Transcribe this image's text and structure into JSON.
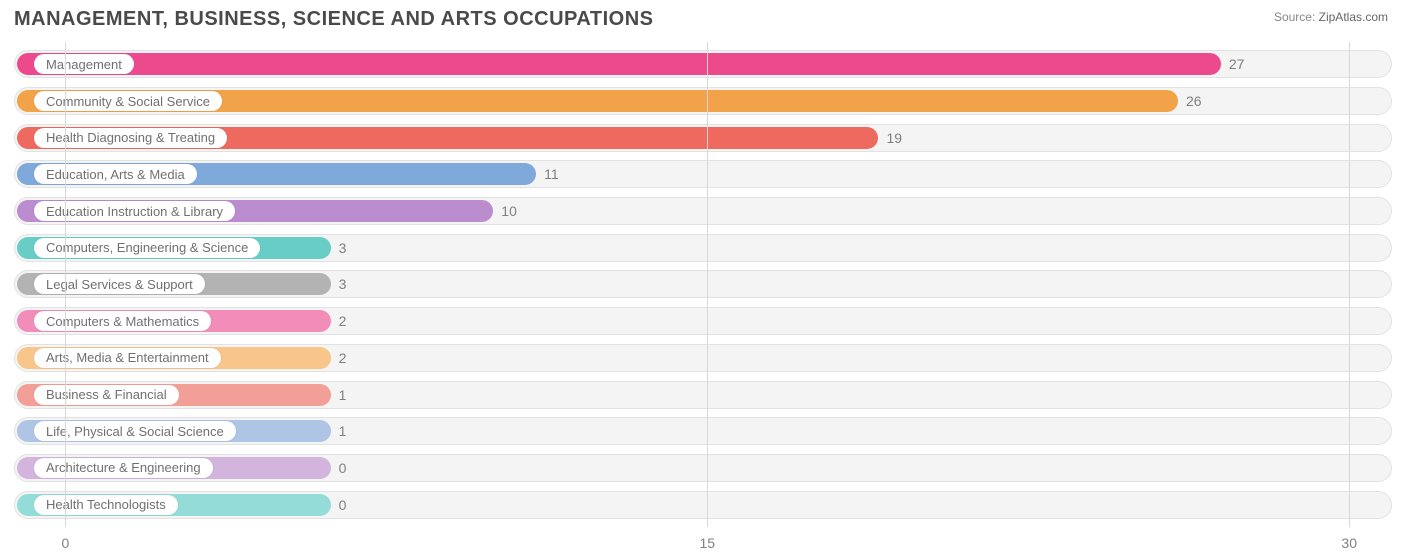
{
  "title": "MANAGEMENT, BUSINESS, SCIENCE AND ARTS OCCUPATIONS",
  "source_label": "Source:",
  "source_value": "ZipAtlas.com",
  "chart": {
    "type": "bar-horizontal",
    "x_min": -1.2,
    "x_max": 31,
    "x_ticks": [
      0,
      15,
      30
    ],
    "track_bg": "#f4f4f4",
    "track_border": "#e2e2e2",
    "grid_color": "#d8d8d8",
    "text_color": "#808080",
    "pill_bg": "#ffffff",
    "min_bar_value": 6.2,
    "bars": [
      {
        "label": "Management",
        "value": 27,
        "color": "#ec4a8d"
      },
      {
        "label": "Community & Social Service",
        "value": 26,
        "color": "#f2a34a"
      },
      {
        "label": "Health Diagnosing & Treating",
        "value": 19,
        "color": "#ee6a5f"
      },
      {
        "label": "Education, Arts & Media",
        "value": 11,
        "color": "#7fa9db"
      },
      {
        "label": "Education Instruction & Library",
        "value": 10,
        "color": "#bb8cce"
      },
      {
        "label": "Computers, Engineering & Science",
        "value": 3,
        "color": "#68cdc7"
      },
      {
        "label": "Legal Services & Support",
        "value": 3,
        "color": "#b3b3b3"
      },
      {
        "label": "Computers & Mathematics",
        "value": 2,
        "color": "#f18db8"
      },
      {
        "label": "Arts, Media & Entertainment",
        "value": 2,
        "color": "#f8c58a"
      },
      {
        "label": "Business & Financial",
        "value": 1,
        "color": "#f29f97"
      },
      {
        "label": "Life, Physical & Social Science",
        "value": 1,
        "color": "#aec5e5"
      },
      {
        "label": "Architecture & Engineering",
        "value": 0,
        "color": "#d2b4dd"
      },
      {
        "label": "Health Technologists",
        "value": 0,
        "color": "#94dcd7"
      }
    ]
  }
}
